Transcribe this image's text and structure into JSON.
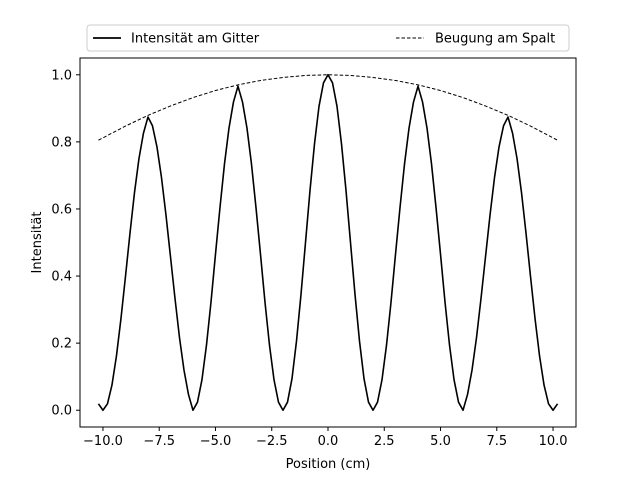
{
  "chart_data": {
    "type": "line",
    "title": "",
    "xlabel": "Position (cm)",
    "ylabel": "Intensität",
    "xlim": [
      -11.02,
      11.02
    ],
    "ylim": [
      -0.05,
      1.05
    ],
    "x_ticks": [
      -10.0,
      -7.5,
      -5.0,
      -2.5,
      0.0,
      2.5,
      5.0,
      7.5,
      10.0
    ],
    "x_tick_labels": [
      "−10.0",
      "−7.5",
      "−5.0",
      "−2.5",
      "0.0",
      "2.5",
      "5.0",
      "7.5",
      "10.0"
    ],
    "y_ticks": [
      0.0,
      0.2,
      0.4,
      0.6,
      0.8,
      1.0
    ],
    "y_tick_labels": [
      "0.0",
      "0.2",
      "0.4",
      "0.6",
      "0.8",
      "1.0"
    ],
    "grid": false,
    "legend": "top",
    "series": [
      {
        "name": "Intensität am Gitter",
        "style": "solid",
        "color": "#000000",
        "x": [
          -10.2,
          -10.0,
          -9.8,
          -9.6,
          -9.4,
          -9.2,
          -9.0,
          -8.8,
          -8.6,
          -8.4,
          -8.2,
          -8.0,
          -7.8,
          -7.6,
          -7.4,
          -7.2,
          -7.0,
          -6.8,
          -6.6,
          -6.4,
          -6.2,
          -6.0,
          -5.8,
          -5.6,
          -5.4,
          -5.2,
          -5.0,
          -4.8,
          -4.6,
          -4.4,
          -4.2,
          -4.0,
          -3.8,
          -3.6,
          -3.4,
          -3.2,
          -3.0,
          -2.8,
          -2.6,
          -2.4,
          -2.2,
          -2.0,
          -1.8,
          -1.6,
          -1.4,
          -1.2,
          -1.0,
          -0.8,
          -0.6,
          -0.4,
          -0.2,
          0.0,
          0.2,
          0.4,
          0.6,
          0.8,
          1.0,
          1.2,
          1.4,
          1.6,
          1.8,
          2.0,
          2.2,
          2.4,
          2.6,
          2.8,
          3.0,
          3.2,
          3.4,
          3.6,
          3.8,
          4.0,
          4.2,
          4.4,
          4.6,
          4.8,
          5.0,
          5.2,
          5.4,
          5.6,
          5.8,
          6.0,
          6.2,
          6.4,
          6.6,
          6.8,
          7.0,
          7.2,
          7.4,
          7.6,
          7.8,
          8.0,
          8.2,
          8.4,
          8.6,
          8.8,
          9.0,
          9.2,
          9.4,
          9.6,
          9.8,
          10.0,
          10.2
        ],
        "values": [
          0.019,
          0.0,
          0.019,
          0.075,
          0.162,
          0.273,
          0.398,
          0.527,
          0.648,
          0.75,
          0.826,
          0.874,
          0.848,
          0.785,
          0.694,
          0.582,
          0.458,
          0.334,
          0.217,
          0.12,
          0.047,
          0.0,
          0.024,
          0.091,
          0.194,
          0.322,
          0.465,
          0.604,
          0.734,
          0.841,
          0.919,
          0.966,
          0.919,
          0.841,
          0.734,
          0.604,
          0.465,
          0.322,
          0.194,
          0.091,
          0.024,
          0.0,
          0.024,
          0.094,
          0.206,
          0.345,
          0.5,
          0.655,
          0.794,
          0.906,
          0.976,
          1.0,
          0.976,
          0.906,
          0.794,
          0.655,
          0.5,
          0.345,
          0.206,
          0.094,
          0.024,
          0.0,
          0.024,
          0.091,
          0.194,
          0.322,
          0.465,
          0.604,
          0.734,
          0.841,
          0.919,
          0.966,
          0.919,
          0.841,
          0.734,
          0.604,
          0.465,
          0.322,
          0.194,
          0.091,
          0.024,
          0.0,
          0.047,
          0.12,
          0.217,
          0.334,
          0.458,
          0.582,
          0.694,
          0.785,
          0.848,
          0.874,
          0.826,
          0.75,
          0.648,
          0.527,
          0.398,
          0.273,
          0.162,
          0.075,
          0.019,
          0.0,
          0.019
        ]
      },
      {
        "name": "Beugung am Spalt",
        "style": "dashed",
        "color": "#000000",
        "x": [
          -10.2,
          -9.0,
          -8.0,
          -7.0,
          -6.0,
          -5.0,
          -4.0,
          -3.0,
          -2.0,
          -1.0,
          0.0,
          1.0,
          2.0,
          3.0,
          4.0,
          5.0,
          6.0,
          7.0,
          8.0,
          9.0,
          10.2
        ],
        "values": [
          0.805,
          0.847,
          0.879,
          0.907,
          0.932,
          0.953,
          0.97,
          0.983,
          0.992,
          0.998,
          1.0,
          0.998,
          0.992,
          0.983,
          0.97,
          0.953,
          0.932,
          0.907,
          0.879,
          0.847,
          0.805
        ]
      }
    ]
  }
}
